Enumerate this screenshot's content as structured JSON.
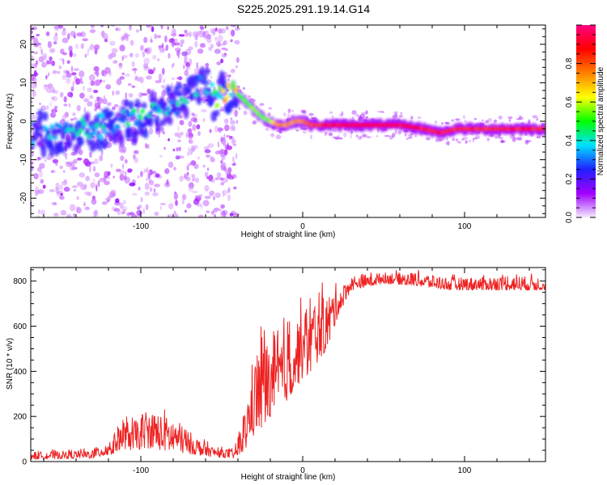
{
  "title": "S225.2025.291.19.14.G14",
  "chart_data": [
    {
      "type": "heatmap",
      "xlabel": "Height of straight line (km)",
      "ylabel": "Frequency (Hz)",
      "xlim": [
        -168,
        150
      ],
      "ylim": [
        -25,
        25
      ],
      "xticks": [
        -100,
        0,
        100
      ],
      "yticks": [
        -20,
        -10,
        0,
        10,
        20
      ],
      "colorbar": {
        "label": "Normalized spectral amplitude",
        "range": [
          0,
          1
        ],
        "ticks": [
          0,
          0.2,
          0.4,
          0.6,
          0.8
        ],
        "tick_labels": [
          "0.0",
          "0.2",
          "0.4",
          "0.6",
          "0.8"
        ],
        "colors": [
          "#f4ecff",
          "#a000ff",
          "#2020ff",
          "#00e0ff",
          "#00ff00",
          "#ffff00",
          "#ff8000",
          "#ff0000",
          "#ff0080"
        ]
      },
      "ridge": [
        {
          "x": -165,
          "f": -3,
          "a": 0.25
        },
        {
          "x": -150,
          "f": -3,
          "a": 0.3
        },
        {
          "x": -135,
          "f": -2,
          "a": 0.3
        },
        {
          "x": -120,
          "f": -1,
          "a": 0.3
        },
        {
          "x": -110,
          "f": 0,
          "a": 0.3
        },
        {
          "x": -100,
          "f": 1,
          "a": 0.35
        },
        {
          "x": -90,
          "f": 3,
          "a": 0.3
        },
        {
          "x": -80,
          "f": 4,
          "a": 0.3
        },
        {
          "x": -70,
          "f": 7,
          "a": 0.3
        },
        {
          "x": -60,
          "f": 10,
          "a": 0.25
        },
        {
          "x": -55,
          "f": 6,
          "a": 0.4
        },
        {
          "x": -50,
          "f": 7,
          "a": 0.5
        },
        {
          "x": -45,
          "f": 8,
          "a": 0.6
        },
        {
          "x": -40,
          "f": 7,
          "a": 0.55
        },
        {
          "x": -35,
          "f": 5,
          "a": 0.55
        },
        {
          "x": -30,
          "f": 3,
          "a": 0.6
        },
        {
          "x": -25,
          "f": 1,
          "a": 0.55
        },
        {
          "x": -20,
          "f": 0,
          "a": 0.6
        },
        {
          "x": -15,
          "f": -1,
          "a": 0.8
        },
        {
          "x": -10,
          "f": -1,
          "a": 0.75
        },
        {
          "x": -5,
          "f": 0,
          "a": 0.75
        },
        {
          "x": 0,
          "f": 0,
          "a": 0.8
        },
        {
          "x": 5,
          "f": -1,
          "a": 0.85
        },
        {
          "x": 10,
          "f": -1,
          "a": 0.85
        },
        {
          "x": 15,
          "f": -1,
          "a": 0.9
        },
        {
          "x": 20,
          "f": -1,
          "a": 0.9
        },
        {
          "x": 30,
          "f": -1,
          "a": 0.95
        },
        {
          "x": 45,
          "f": -1,
          "a": 0.95
        },
        {
          "x": 60,
          "f": -1,
          "a": 0.95
        },
        {
          "x": 75,
          "f": -2,
          "a": 0.9
        },
        {
          "x": 85,
          "f": -3,
          "a": 0.9
        },
        {
          "x": 95,
          "f": -2,
          "a": 0.9
        },
        {
          "x": 110,
          "f": -2,
          "a": 0.9
        },
        {
          "x": 130,
          "f": -2,
          "a": 0.9
        },
        {
          "x": 148,
          "f": -2,
          "a": 0.9
        }
      ],
      "noise_zone": {
        "x_range": [
          -168,
          -40
        ],
        "f_range": [
          -25,
          25
        ]
      }
    },
    {
      "type": "line",
      "xlabel": "Height of straight line (km)",
      "ylabel": "SNR (10 * v/v)",
      "xlim": [
        -168,
        150
      ],
      "ylim": [
        0,
        860
      ],
      "xticks": [
        -100,
        0,
        100
      ],
      "yticks": [
        0,
        200,
        400,
        600,
        800
      ],
      "line_color": "#ee2222",
      "envelope": [
        {
          "x": -168,
          "lo": 10,
          "hi": 50
        },
        {
          "x": -130,
          "lo": 15,
          "hi": 60
        },
        {
          "x": -118,
          "lo": 30,
          "hi": 120
        },
        {
          "x": -112,
          "lo": 60,
          "hi": 220
        },
        {
          "x": -105,
          "lo": 50,
          "hi": 200
        },
        {
          "x": -95,
          "lo": 60,
          "hi": 260
        },
        {
          "x": -85,
          "lo": 50,
          "hi": 240
        },
        {
          "x": -75,
          "lo": 40,
          "hi": 200
        },
        {
          "x": -65,
          "lo": 30,
          "hi": 120
        },
        {
          "x": -55,
          "lo": 20,
          "hi": 70
        },
        {
          "x": -42,
          "lo": 15,
          "hi": 60
        },
        {
          "x": -36,
          "lo": 50,
          "hi": 260
        },
        {
          "x": -30,
          "lo": 120,
          "hi": 500
        },
        {
          "x": -25,
          "lo": 150,
          "hi": 700
        },
        {
          "x": -20,
          "lo": 200,
          "hi": 560
        },
        {
          "x": -12,
          "lo": 250,
          "hi": 650
        },
        {
          "x": -5,
          "lo": 320,
          "hi": 700
        },
        {
          "x": 5,
          "lo": 400,
          "hi": 780
        },
        {
          "x": 15,
          "lo": 500,
          "hi": 800
        },
        {
          "x": 22,
          "lo": 650,
          "hi": 790
        },
        {
          "x": 30,
          "lo": 760,
          "hi": 830
        },
        {
          "x": 50,
          "lo": 790,
          "hi": 850
        },
        {
          "x": 70,
          "lo": 780,
          "hi": 850
        },
        {
          "x": 90,
          "lo": 760,
          "hi": 830
        },
        {
          "x": 110,
          "lo": 760,
          "hi": 830
        },
        {
          "x": 130,
          "lo": 760,
          "hi": 840
        },
        {
          "x": 150,
          "lo": 760,
          "hi": 830
        }
      ]
    }
  ]
}
